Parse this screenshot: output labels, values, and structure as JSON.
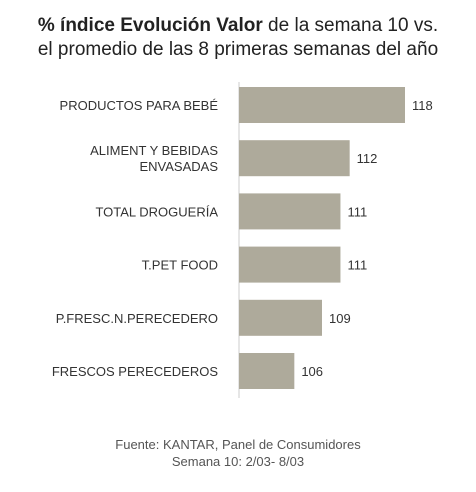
{
  "title": {
    "bold": "% índice Evolución Valor",
    "rest": " de la semana 10 vs.",
    "line2": "el promedio de las 8 primeras semanas del año"
  },
  "source": {
    "line1": "Fuente: KANTAR, Panel de Consumidores",
    "line2": "Semana 10: 2/03- 8/03"
  },
  "colors": {
    "bar": "#aeaa9b",
    "axis": "#cccccc",
    "text": "#333333"
  },
  "chart_data": {
    "type": "bar",
    "orientation": "horizontal",
    "categories": [
      [
        "PRODUCTOS PARA BEBÉ"
      ],
      [
        "ALIMENT Y BEBIDAS",
        "ENVASADAS"
      ],
      [
        "TOTAL DROGUERÍA"
      ],
      [
        "T.PET FOOD"
      ],
      [
        "P.FRESC.N.PERECEDERO"
      ],
      [
        "FRESCOS PERECEDEROS"
      ]
    ],
    "values": [
      118,
      112,
      111,
      111,
      109,
      106
    ],
    "data_labels": [
      "118",
      "112",
      "111",
      "111",
      "109",
      "106"
    ],
    "xlim": [
      100,
      118
    ],
    "grid": false,
    "legend": "none"
  }
}
